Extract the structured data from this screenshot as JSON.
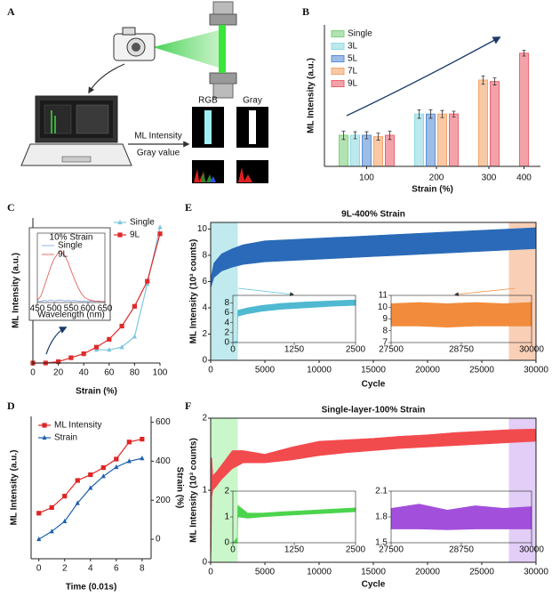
{
  "panel_a": {
    "label": "A",
    "rgb": "RGB",
    "gray": "Gray",
    "ml_intensity": "ML Intensity",
    "gray_value": "Gray value"
  },
  "chart_data": [
    {
      "panel": "B",
      "type": "bar",
      "xlabel": "Strain (%)",
      "ylabel": "ML Intensity (a.u.)",
      "categories": [
        "100",
        "200",
        "300",
        "400"
      ],
      "ylim": [
        0,
        1
      ],
      "legend": "upper left",
      "series": [
        {
          "name": "Single",
          "color": "#7fd17f",
          "values": [
            0.22,
            null,
            null,
            null
          ],
          "errors": [
            0.03,
            null,
            null,
            null
          ]
        },
        {
          "name": "3L",
          "color": "#8fdbe3",
          "values": [
            0.22,
            0.37,
            null,
            null
          ],
          "errors": [
            0.025,
            0.03,
            null,
            null
          ]
        },
        {
          "name": "5L",
          "color": "#5b8fd6",
          "values": [
            0.22,
            0.37,
            null,
            null
          ],
          "errors": [
            0.025,
            0.03,
            null,
            null
          ]
        },
        {
          "name": "7L",
          "color": "#f5a46a",
          "values": [
            0.21,
            0.37,
            0.61,
            null
          ],
          "errors": [
            0.025,
            0.025,
            0.03,
            null
          ]
        },
        {
          "name": "9L",
          "color": "#ec6470",
          "values": [
            0.22,
            0.37,
            0.6,
            0.8
          ],
          "errors": [
            0.03,
            0.02,
            0.025,
            0.02
          ]
        }
      ]
    },
    {
      "panel": "C",
      "type": "line",
      "xlabel": "Strain (%)",
      "ylabel": "ML Intensity (a.u.)",
      "x": [
        0,
        10,
        20,
        30,
        40,
        50,
        60,
        70,
        80,
        90,
        100
      ],
      "xlim": [
        0,
        100
      ],
      "xticks": [
        0,
        20,
        40,
        60,
        80,
        100
      ],
      "ylim": [
        0,
        1.1
      ],
      "legend": "upper right",
      "series": [
        {
          "name": "Single",
          "color": "#7cc6de",
          "marker": "triangle",
          "values": [
            null,
            null,
            null,
            null,
            null,
            0.1,
            0.1,
            0.12,
            0.2,
            0.6,
            1.03
          ]
        },
        {
          "name": "9L",
          "color": "#e02a2a",
          "marker": "square",
          "values": [
            0,
            0,
            0.01,
            0.04,
            0.07,
            0.12,
            0.18,
            0.28,
            0.43,
            0.62,
            0.98
          ]
        }
      ],
      "insets": [
        {
          "type": "line",
          "title": "10% Strain",
          "xlabel": "Wavelength (nm)",
          "x": [
            450,
            460,
            470,
            480,
            490,
            500,
            510,
            520,
            530,
            540,
            550,
            560,
            570,
            580,
            590,
            600,
            610,
            620,
            630,
            640,
            650
          ],
          "xlim": [
            450,
            650
          ],
          "xticks": [
            450,
            500,
            550,
            600,
            650
          ],
          "ylim": [
            0,
            1.35
          ],
          "legend": "upper left",
          "series": [
            {
              "name": "Single",
              "color": "#7a9be0",
              "values": [
                0.03,
                0.02,
                0.04,
                0.03,
                0.05,
                0.03,
                0.04,
                0.05,
                0.03,
                0.04,
                0.03,
                0.04,
                0.03,
                0.02,
                0.03,
                0.02,
                0.03,
                0.02,
                0.03,
                0.02,
                0.02
              ]
            },
            {
              "name": "9L",
              "color": "#e0504a",
              "values": [
                0.05,
                0.12,
                0.3,
                0.5,
                0.7,
                0.85,
                0.95,
                1.0,
                0.92,
                0.8,
                0.62,
                0.45,
                0.3,
                0.18,
                0.1,
                0.06,
                0.04,
                0.03,
                0.02,
                0.02,
                0.02
              ]
            }
          ]
        }
      ]
    },
    {
      "panel": "D",
      "type": "line",
      "xlabel": "Time (0.01s)",
      "ylabel": "ML Intensity (a.u.)",
      "y2label": "Strain (%)",
      "x": [
        0,
        1,
        2,
        3,
        4,
        5,
        6,
        7,
        8
      ],
      "xlim": [
        -0.6,
        8.7
      ],
      "xticks": [
        0,
        2,
        4,
        6,
        8
      ],
      "ylim": [
        0,
        1
      ],
      "y2lim": [
        -100,
        630
      ],
      "y2ticks": [
        0,
        200,
        400,
        600
      ],
      "legend": "upper left",
      "series": [
        {
          "name": "ML Intensity",
          "color": "#e02424",
          "marker": "square",
          "values": [
            0.32,
            0.36,
            0.44,
            0.55,
            0.59,
            0.64,
            0.7,
            0.82,
            0.84
          ]
        },
        {
          "name": "Strain",
          "color": "#1f5fb0",
          "marker": "triangle",
          "axis": "y2",
          "values": [
            0,
            40,
            92,
            185,
            263,
            323,
            370,
            400,
            415
          ]
        }
      ]
    },
    {
      "panel": "E",
      "type": "band",
      "title": "9L-400% Strain",
      "xlabel": "Cycle",
      "ylabel": "ML Intensity (10³ counts)",
      "x": [
        0,
        300,
        1000,
        2000,
        3000,
        5000,
        7500,
        10000,
        12500,
        15000,
        17500,
        20000,
        22500,
        25000,
        27500,
        30000
      ],
      "xlim": [
        0,
        30000
      ],
      "xticks": [
        0,
        5000,
        10000,
        15000,
        20000,
        25000,
        30000
      ],
      "ylim": [
        0,
        10.5
      ],
      "yticks": [
        0,
        2,
        4,
        6,
        8,
        10
      ],
      "band": {
        "color": "#2a6ab8",
        "low": [
          5.5,
          6.3,
          6.8,
          7.1,
          7.3,
          7.5,
          7.6,
          7.7,
          7.8,
          7.9,
          8.0,
          8.1,
          8.2,
          8.3,
          8.4,
          8.5
        ],
        "high": [
          6.2,
          7.4,
          8.1,
          8.5,
          8.8,
          9.1,
          9.2,
          9.3,
          9.4,
          9.5,
          9.6,
          9.7,
          9.8,
          9.9,
          10.0,
          10.1
        ]
      },
      "shade": [
        {
          "range": [
            0,
            2500
          ],
          "color": "#8dd8e0"
        },
        {
          "range": [
            27500,
            30000
          ],
          "color": "#f4a77a"
        }
      ],
      "insets": [
        {
          "type": "band",
          "x": [
            0,
            90,
            100,
            300,
            600,
            1000,
            1500,
            2000,
            2500
          ],
          "xlim": [
            0,
            2500
          ],
          "xticks": [
            0,
            1250,
            2500
          ],
          "ylim": [
            0,
            9.5
          ],
          "yticks": [
            0,
            2,
            4,
            6,
            8
          ],
          "band": {
            "color": "#4fb9d1",
            "low": [
              0,
              0,
              5.3,
              5.8,
              6.3,
              6.7,
              7.0,
              7.3,
              7.5
            ],
            "high": [
              0,
              0.3,
              6.5,
              7.0,
              7.5,
              7.9,
              8.2,
              8.4,
              8.6
            ]
          }
        },
        {
          "type": "band",
          "x": [
            27500,
            28000,
            28500,
            29000,
            29500,
            30000
          ],
          "xlim": [
            27500,
            30000
          ],
          "xticks": [
            27500,
            28750,
            30000
          ],
          "ylim": [
            7,
            11
          ],
          "yticks": [
            7,
            8,
            9,
            10,
            11
          ],
          "band": {
            "color": "#f28c3c",
            "low": [
              8.4,
              8.4,
              8.3,
              8.4,
              8.4,
              8.4
            ],
            "high": [
              10.3,
              10.4,
              10.3,
              10.4,
              10.3,
              10.4
            ]
          }
        }
      ]
    },
    {
      "panel": "F",
      "type": "band",
      "title": "Single-layer-100% Strain",
      "xlabel": "Cycle",
      "ylabel": "ML Intensity (10³ counts)",
      "x": [
        0,
        50,
        100,
        200,
        500,
        1000,
        2000,
        3000,
        5000,
        7500,
        10000,
        12500,
        15000,
        17500,
        20000,
        22500,
        25000,
        27500,
        30000
      ],
      "xlim": [
        0,
        30000
      ],
      "xticks": [
        0,
        5000,
        10000,
        15000,
        20000,
        25000,
        30000
      ],
      "ylim": [
        0,
        2
      ],
      "yticks": [
        0,
        1,
        2
      ],
      "band": {
        "color": "#f24b4e",
        "low": [
          0,
          0.2,
          0.9,
          1.0,
          1.05,
          1.15,
          1.3,
          1.38,
          1.38,
          1.42,
          1.48,
          1.52,
          1.55,
          1.58,
          1.6,
          1.62,
          1.64,
          1.66,
          1.68
        ],
        "high": [
          0,
          1.45,
          1.45,
          1.2,
          1.25,
          1.35,
          1.55,
          1.55,
          1.5,
          1.6,
          1.68,
          1.7,
          1.72,
          1.75,
          1.77,
          1.8,
          1.82,
          1.84,
          1.85
        ]
      },
      "shade": [
        {
          "range": [
            0,
            2500
          ],
          "color": "#9cf09c"
        },
        {
          "range": [
            27500,
            30000
          ],
          "color": "#caa6ee"
        }
      ],
      "insets": [
        {
          "type": "band",
          "x": [
            0,
            90,
            100,
            300,
            600,
            1000,
            1500,
            2000,
            2500
          ],
          "xlim": [
            0,
            2500
          ],
          "xticks": [
            0,
            1250,
            2500
          ],
          "ylim": [
            0,
            2
          ],
          "yticks": [
            0,
            1,
            2
          ],
          "band": {
            "color": "#4cd44c",
            "low": [
              0,
              0,
              1.0,
              0.95,
              1.0,
              1.05,
              1.1,
              1.15,
              1.2
            ],
            "high": [
              0,
              0.2,
              1.45,
              1.15,
              1.15,
              1.2,
              1.25,
              1.3,
              1.35
            ]
          }
        },
        {
          "type": "band",
          "x": [
            27500,
            28000,
            28500,
            29000,
            29500,
            30000
          ],
          "xlim": [
            27500,
            30000
          ],
          "xticks": [
            27500,
            28750,
            30000
          ],
          "ylim": [
            1.5,
            2.1
          ],
          "yticks": [
            1.5,
            1.8,
            2.1
          ],
          "band": {
            "color": "#a24fdc",
            "low": [
              1.66,
              1.66,
              1.65,
              1.66,
              1.66,
              1.66
            ],
            "high": [
              1.9,
              1.95,
              1.88,
              1.93,
              1.9,
              1.92
            ]
          }
        }
      ]
    }
  ]
}
